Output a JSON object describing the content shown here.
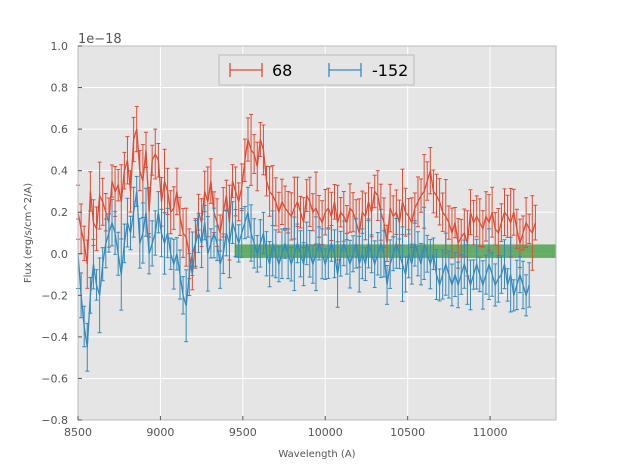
{
  "chart_data": {
    "type": "line",
    "title": "",
    "xlabel": "Wavelength (A)",
    "ylabel": "Flux (erg/s/cm^2/A)",
    "y_offset_label": "1e−18",
    "xlim": [
      8500,
      11400
    ],
    "ylim": [
      -0.8,
      1.0
    ],
    "xticks": [
      8500,
      9000,
      9500,
      10000,
      10500,
      11000
    ],
    "xtick_labels": [
      "8500",
      "9000",
      "9500",
      "10000",
      "10500",
      "11000"
    ],
    "yticks": [
      -0.8,
      -0.6,
      -0.4,
      -0.2,
      0.0,
      0.2,
      0.4,
      0.6,
      0.8,
      1.0
    ],
    "ytick_labels": [
      "−0.8",
      "−0.6",
      "−0.4",
      "−0.2",
      "0.0",
      "0.2",
      "0.4",
      "0.6",
      "0.8",
      "1.0"
    ],
    "grid": true,
    "legend_position": "top-center",
    "band": {
      "x_start": 9450,
      "x_end": 11400,
      "y_low": -0.02,
      "y_high": 0.045,
      "color": "#3a9a3a"
    },
    "x_start": 8500,
    "x_step": 18.75,
    "series": [
      {
        "name": "68",
        "color": "#e24a33",
        "values": [
          0.2,
          0.12,
          0.05,
          -0.05,
          0.3,
          0.15,
          0.12,
          0.28,
          0.25,
          0.2,
          0.15,
          0.35,
          0.3,
          0.33,
          0.25,
          0.4,
          0.45,
          0.3,
          0.55,
          0.6,
          0.4,
          0.35,
          0.5,
          0.2,
          0.45,
          0.48,
          0.45,
          0.25,
          0.35,
          0.3,
          0.2,
          0.22,
          0.3,
          0.18,
          0.1,
          0.08,
          0.0,
          -0.1,
          0.05,
          0.2,
          0.15,
          0.3,
          0.25,
          0.35,
          0.2,
          0.15,
          0.1,
          0.2,
          0.28,
          0.15,
          0.35,
          0.3,
          0.25,
          0.32,
          0.45,
          0.55,
          0.5,
          0.48,
          0.42,
          0.55,
          0.5,
          0.35,
          0.3,
          0.28,
          0.25,
          0.2,
          0.25,
          0.22,
          0.2,
          0.18,
          0.22,
          0.25,
          0.2,
          0.15,
          0.28,
          0.25,
          0.2,
          0.22,
          0.18,
          0.15,
          0.2,
          0.22,
          0.18,
          0.25,
          0.15,
          0.2,
          0.18,
          0.15,
          0.22,
          0.2,
          0.15,
          0.1,
          0.2,
          0.18,
          0.25,
          0.2,
          0.3,
          0.28,
          0.2,
          0.15,
          0.05,
          0.22,
          0.18,
          0.2,
          0.15,
          0.25,
          0.2,
          0.18,
          0.15,
          0.22,
          0.25,
          0.28,
          0.3,
          0.35,
          0.4,
          0.3,
          0.28,
          0.25,
          0.2,
          0.18,
          0.15,
          0.1,
          0.15,
          0.05,
          0.08,
          0.1,
          0.05,
          0.2,
          0.15,
          0.18,
          0.15,
          0.12,
          0.18,
          0.15,
          0.2,
          0.12,
          0.1,
          0.15,
          0.2,
          0.18,
          0.15,
          0.2,
          0.12,
          0.05,
          0.1,
          0.15,
          0.12,
          0.1,
          0.15
        ]
      },
      {
        "name": "-152",
        "color": "#348abd",
        "values": [
          0.0,
          -0.2,
          -0.35,
          -0.45,
          -0.2,
          -0.05,
          -0.15,
          -0.2,
          -0.05,
          0.05,
          0.1,
          0.15,
          0.1,
          0.0,
          -0.1,
          0.05,
          0.15,
          0.1,
          0.2,
          0.3,
          0.05,
          0.1,
          0.2,
          0.0,
          0.05,
          0.1,
          0.2,
          0.1,
          0.05,
          0.1,
          0.0,
          -0.05,
          0.0,
          -0.1,
          -0.2,
          -0.25,
          -0.1,
          0.0,
          0.05,
          0.1,
          0.05,
          0.15,
          0.0,
          0.05,
          0.1,
          0.05,
          -0.05,
          0.0,
          0.1,
          0.05,
          0.15,
          0.1,
          0.05,
          0.1,
          0.15,
          0.2,
          0.1,
          0.05,
          0.0,
          0.05,
          0.1,
          0.0,
          -0.05,
          0.05,
          0.0,
          -0.05,
          0.0,
          0.05,
          0.0,
          -0.05,
          0.0,
          0.05,
          0.0,
          -0.05,
          0.05,
          0.0,
          -0.05,
          0.0,
          0.05,
          0.0,
          -0.05,
          0.0,
          0.05,
          0.0,
          -0.1,
          0.0,
          0.05,
          0.0,
          -0.05,
          0.0,
          0.05,
          -0.05,
          0.0,
          -0.05,
          0.05,
          0.0,
          -0.05,
          0.0,
          0.05,
          0.0,
          -0.15,
          -0.05,
          0.0,
          0.05,
          0.0,
          -0.05,
          -0.1,
          0.0,
          -0.05,
          0.05,
          0.0,
          -0.05,
          0.05,
          0.0,
          -0.05,
          0.0,
          -0.1,
          -0.15,
          -0.1,
          -0.05,
          -0.1,
          -0.15,
          -0.1,
          -0.15,
          -0.1,
          -0.05,
          -0.1,
          -0.15,
          -0.1,
          -0.05,
          -0.1,
          -0.15,
          -0.1,
          -0.05,
          -0.1,
          -0.15,
          -0.12,
          -0.1,
          -0.05,
          -0.15,
          -0.1,
          -0.2,
          -0.15,
          -0.1,
          -0.15,
          -0.2,
          -0.15
        ]
      }
    ]
  }
}
